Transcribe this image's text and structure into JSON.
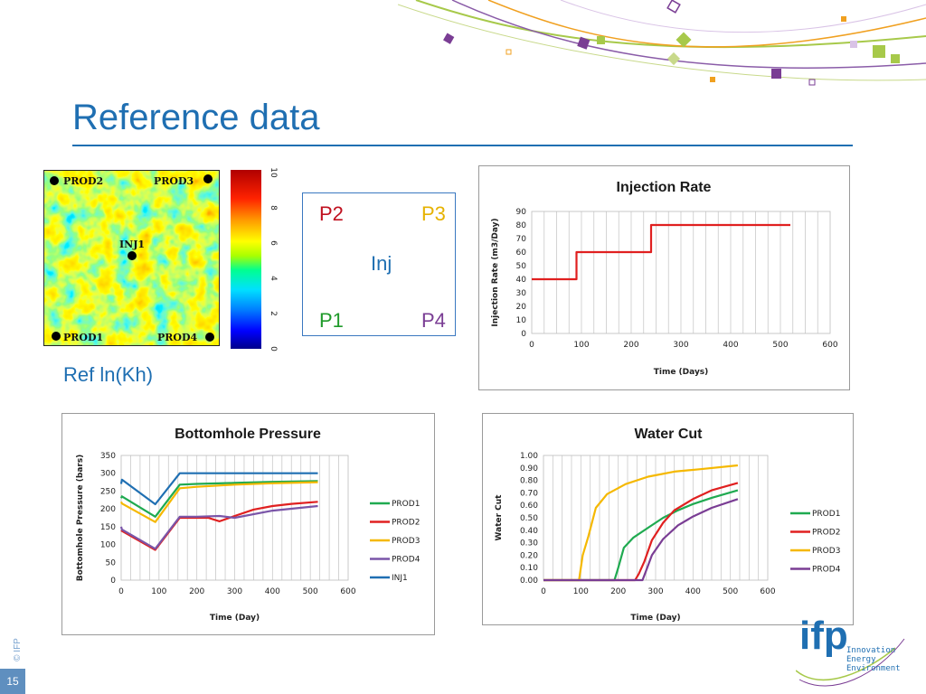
{
  "slide": {
    "title": "Reference data",
    "page_number": "15",
    "copyright": "© IFP"
  },
  "brand": {
    "accent": "#1f6fb2",
    "logo_letters": "ifp",
    "logo_lines": [
      "Innovation",
      "Energy",
      "Environment"
    ]
  },
  "map": {
    "caption": "Ref ln(Kh)",
    "wells": {
      "prod2": "PROD2",
      "prod3": "PROD3",
      "inj1": "INJ1",
      "prod1": "PROD1",
      "prod4": "PROD4"
    },
    "colorbar_ticks": [
      "10",
      "8",
      "6",
      "4",
      "2",
      "0"
    ]
  },
  "schematic": {
    "p2": "P2",
    "p3": "P3",
    "inj": "Inj",
    "p1": "P1",
    "p4": "P4",
    "colors": {
      "p2": "#c0101f",
      "p3": "#e6b200",
      "inj": "#1f6fb2",
      "p1": "#1f9a2a",
      "p4": "#7a3d94"
    }
  },
  "chart_data": [
    {
      "id": "injection",
      "type": "line",
      "title": "Injection Rate",
      "xlabel": "Time (Days)",
      "ylabel": "Injection Rate (m3/Day)",
      "xlim": [
        0,
        600
      ],
      "ylim": [
        0,
        90
      ],
      "xticks": [
        0,
        100,
        200,
        300,
        400,
        500,
        600
      ],
      "yticks": [
        0,
        10,
        20,
        30,
        40,
        50,
        60,
        70,
        80,
        90
      ],
      "ytick_decimals": 0,
      "vgrid_step": 25,
      "legend": "none",
      "series": [
        {
          "name": "Injection",
          "color": "#e02020",
          "x": [
            0,
            90,
            90,
            240,
            240,
            520
          ],
          "y": [
            40,
            40,
            60,
            60,
            80,
            80
          ]
        }
      ]
    },
    {
      "id": "bhp",
      "type": "line",
      "title": "Bottomhole Pressure",
      "xlabel": "Time (Day)",
      "ylabel": "Bottomhole Pressure (bars)",
      "xlim": [
        0,
        600
      ],
      "ylim": [
        0,
        350
      ],
      "xticks": [
        0,
        100,
        200,
        300,
        400,
        500,
        600
      ],
      "yticks": [
        0,
        50,
        100,
        150,
        200,
        250,
        300,
        350
      ],
      "ytick_decimals": 0,
      "vgrid_step": 25,
      "legend": "right",
      "series": [
        {
          "name": "PROD1",
          "color": "#1faa50",
          "x": [
            0,
            2,
            90,
            155,
            200,
            300,
            400,
            520
          ],
          "y": [
            230,
            235,
            178,
            268,
            270,
            273,
            276,
            278
          ]
        },
        {
          "name": "PROD2",
          "color": "#e02020",
          "x": [
            0,
            2,
            90,
            155,
            230,
            260,
            300,
            350,
            400,
            450,
            520
          ],
          "y": [
            140,
            138,
            85,
            175,
            175,
            165,
            180,
            198,
            208,
            214,
            220
          ]
        },
        {
          "name": "PROD3",
          "color": "#f5b800",
          "x": [
            0,
            2,
            90,
            155,
            200,
            300,
            400,
            520
          ],
          "y": [
            220,
            215,
            163,
            258,
            262,
            268,
            272,
            275
          ]
        },
        {
          "name": "PROD4",
          "color": "#7a55a8",
          "x": [
            0,
            2,
            90,
            155,
            200,
            260,
            300,
            400,
            520
          ],
          "y": [
            150,
            142,
            88,
            178,
            178,
            180,
            175,
            195,
            208
          ]
        },
        {
          "name": "INJ1",
          "color": "#1f6fb2",
          "x": [
            0,
            2,
            90,
            155,
            200,
            300,
            400,
            520
          ],
          "y": [
            270,
            282,
            213,
            300,
            300,
            300,
            300,
            300
          ]
        }
      ]
    },
    {
      "id": "watercut",
      "type": "line",
      "title": "Water Cut",
      "xlabel": "Time (Day)",
      "ylabel": "Water Cut",
      "xlim": [
        0,
        600
      ],
      "ylim": [
        0,
        1
      ],
      "xticks": [
        0,
        100,
        200,
        300,
        400,
        500,
        600
      ],
      "yticks": [
        0,
        0.1,
        0.2,
        0.3,
        0.4,
        0.5,
        0.6,
        0.7,
        0.8,
        0.9,
        1.0
      ],
      "ytick_decimals": 2,
      "vgrid_step": 25,
      "legend": "right",
      "series": [
        {
          "name": "PROD1",
          "color": "#1faa50",
          "x": [
            0,
            190,
            200,
            215,
            240,
            280,
            320,
            360,
            400,
            450,
            520
          ],
          "y": [
            0,
            0,
            0.1,
            0.26,
            0.34,
            0.42,
            0.5,
            0.56,
            0.61,
            0.66,
            0.72
          ]
        },
        {
          "name": "PROD2",
          "color": "#e02020",
          "x": [
            0,
            245,
            255,
            270,
            290,
            320,
            350,
            400,
            450,
            520
          ],
          "y": [
            0,
            0,
            0.05,
            0.15,
            0.32,
            0.46,
            0.56,
            0.65,
            0.72,
            0.78
          ]
        },
        {
          "name": "PROD3",
          "color": "#f5b800",
          "x": [
            0,
            95,
            105,
            120,
            140,
            170,
            220,
            280,
            350,
            420,
            520
          ],
          "y": [
            0,
            0,
            0.2,
            0.35,
            0.58,
            0.69,
            0.77,
            0.83,
            0.87,
            0.89,
            0.92
          ]
        },
        {
          "name": "PROD4",
          "color": "#7a3d94",
          "x": [
            0,
            265,
            275,
            290,
            320,
            360,
            400,
            450,
            520
          ],
          "y": [
            0,
            0,
            0.08,
            0.2,
            0.33,
            0.44,
            0.51,
            0.58,
            0.65
          ]
        }
      ]
    }
  ]
}
